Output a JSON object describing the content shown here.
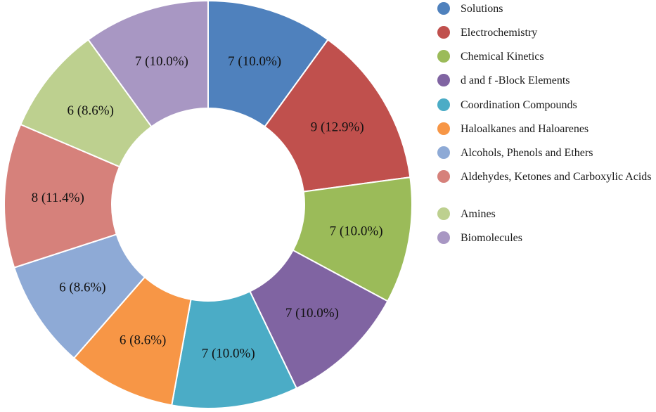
{
  "chart_data": {
    "type": "pie",
    "variant": "donut",
    "legend_position": "right",
    "categories": [
      "Solutions",
      "Electrochemistry",
      "Chemical Kinetics",
      "d and f -Block Elements",
      "Coordination Compounds",
      "Haloalkanes and Haloarenes",
      "Alcohols, Phenols and Ethers",
      "Aldehydes, Ketones and Carboxylic Acids",
      "Amines",
      "Biomolecules"
    ],
    "values": [
      7,
      9,
      7,
      7,
      7,
      6,
      6,
      8,
      6,
      7
    ],
    "data_labels": [
      "7 (10.0%)",
      "9 (12.9%)",
      "7 (10.0%)",
      "7 (10.0%)",
      "7 (10.0%)",
      "6 (8.6%)",
      "6 (8.6%)",
      "8 (11.4%)",
      "6 (8.6%)",
      "7 (10.0%)"
    ],
    "colors": [
      "#4f81bd",
      "#c0504d",
      "#9bbb59",
      "#8064a2",
      "#4bacc6",
      "#f79646",
      "#8eaad6",
      "#d6817b",
      "#bdd08f",
      "#a897c3"
    ]
  }
}
